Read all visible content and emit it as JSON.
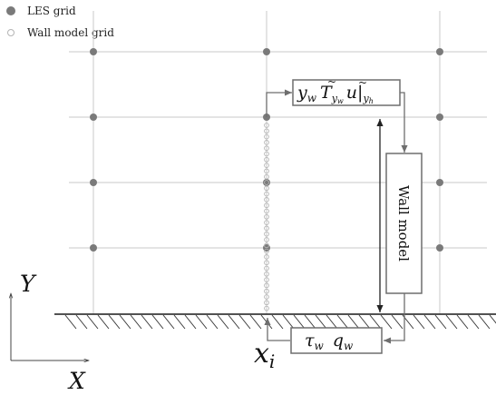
{
  "legend": {
    "les_grid_label": "LES grid",
    "wall_model_grid_label": "Wall model grid"
  },
  "axes": {
    "y_label": "Y",
    "x_label": "X"
  },
  "labels": {
    "x_i": "x",
    "x_i_sub": "i"
  },
  "top_box": {
    "y": "y",
    "w_sub": "w",
    "T": "T",
    "T_sub": "y",
    "T_subsub": "w",
    "u": "u",
    "eval_bar": "|",
    "eval_sub": "y",
    "eval_subsub": "h"
  },
  "wall_model_box": {
    "label": "Wall model"
  },
  "bottom_box": {
    "tau": "τ",
    "tau_sub": "w",
    "q": "q",
    "q_sub": "w"
  },
  "colors": {
    "grid_line": "#c8c8c8",
    "les_point": "#7a7a7a",
    "wall_point": "#b4b4b4",
    "box_stroke": "#6e6e6e",
    "connector": "#6e6e6e",
    "wall": "#3a3a3a"
  }
}
